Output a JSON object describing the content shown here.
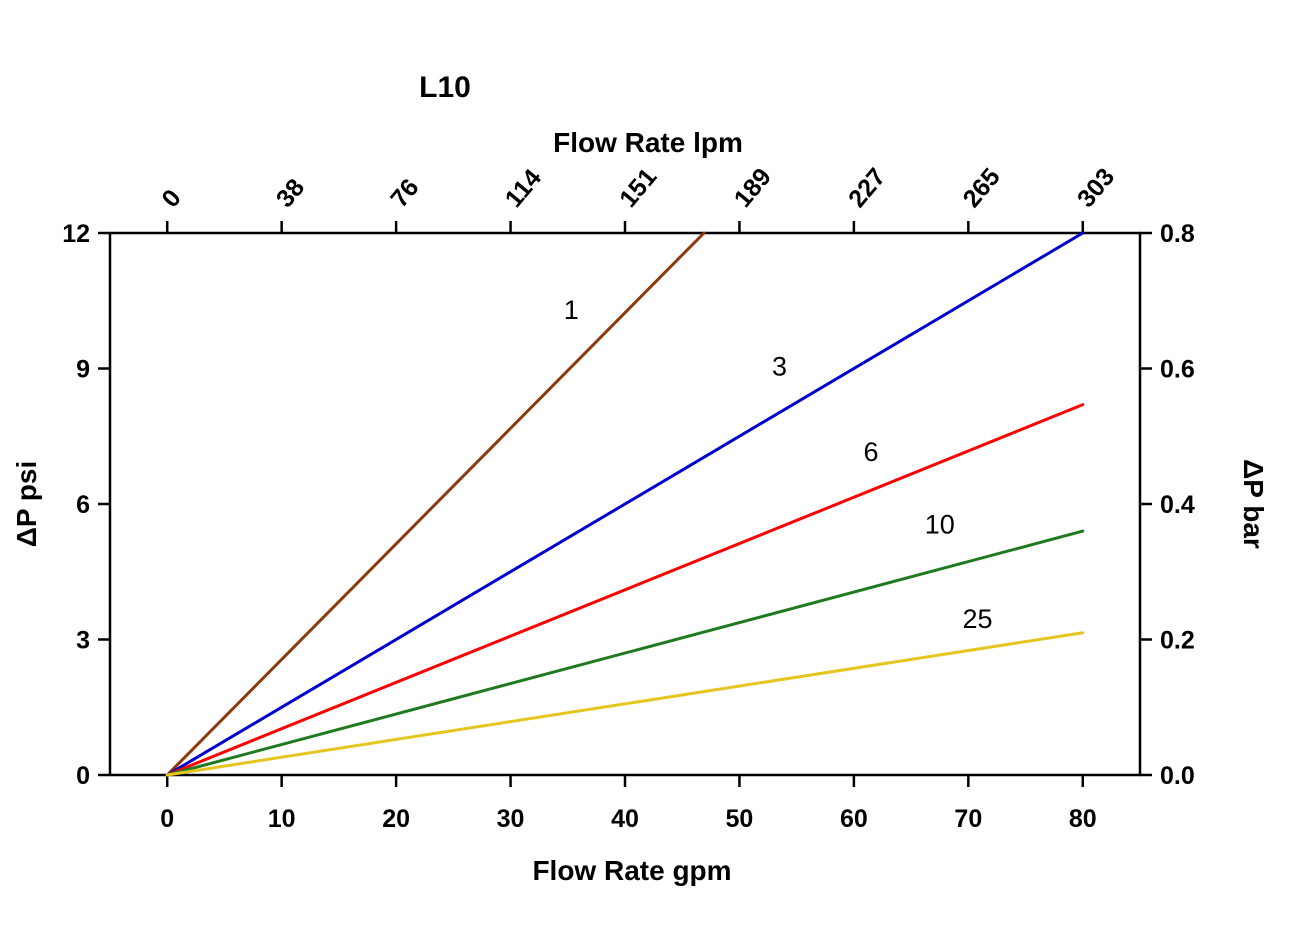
{
  "chart_data": {
    "type": "line",
    "title": "L10",
    "background_color": "#ffffff",
    "axis_color": "#000000",
    "grid": "off",
    "legend": "none (inline numeric labels next to each line)",
    "x_axis_bottom": {
      "label": "Flow Rate gpm",
      "ticks": [
        0,
        10,
        20,
        30,
        40,
        50,
        60,
        70,
        80
      ],
      "range": [
        -5,
        85
      ]
    },
    "x_axis_top": {
      "label": "Flow Rate lpm",
      "ticks": [
        0,
        38,
        76,
        114,
        151,
        189,
        227,
        265,
        303
      ],
      "note": "lpm ticks aligned with bottom gpm ticks (lpm = gpm x 3.785), labels rotated"
    },
    "y_axis_left": {
      "label": "ΔP psi",
      "ticks": [
        0,
        3,
        6,
        9,
        12
      ],
      "range": [
        0,
        12
      ]
    },
    "y_axis_right": {
      "label": "ΔP bar",
      "ticks": [
        "0.0",
        "0.2",
        "0.4",
        "0.6",
        "0.8"
      ],
      "range": [
        0,
        0.8
      ]
    },
    "series": [
      {
        "name": "1",
        "color": "#8B3A0B",
        "points": [
          [
            0,
            0
          ],
          [
            46.9,
            12
          ]
        ],
        "approx_psi_per_gpm": 0.256,
        "label_pos": [
          35.3,
          10.1
        ]
      },
      {
        "name": "3",
        "color": "#0000CE",
        "points": [
          [
            0,
            0
          ],
          [
            80,
            12
          ]
        ],
        "approx_psi_per_gpm": 0.15,
        "label_pos": [
          53.5,
          8.85
        ]
      },
      {
        "name": "6",
        "color": "#FE0000",
        "points": [
          [
            0,
            0
          ],
          [
            80,
            8.2
          ]
        ],
        "approx_psi_per_gpm": 0.1025,
        "label_pos": [
          61.5,
          6.95
        ]
      },
      {
        "name": "10",
        "color": "#1F7A1F",
        "points": [
          [
            0,
            0
          ],
          [
            80,
            5.4
          ]
        ],
        "approx_psi_per_gpm": 0.0675,
        "label_pos": [
          67.5,
          5.35
        ]
      },
      {
        "name": "25",
        "color": "#E5C51E",
        "points": [
          [
            0,
            0
          ],
          [
            80,
            3.15
          ]
        ],
        "approx_psi_per_gpm": 0.0394,
        "label_pos": [
          70.8,
          3.25
        ]
      }
    ]
  }
}
